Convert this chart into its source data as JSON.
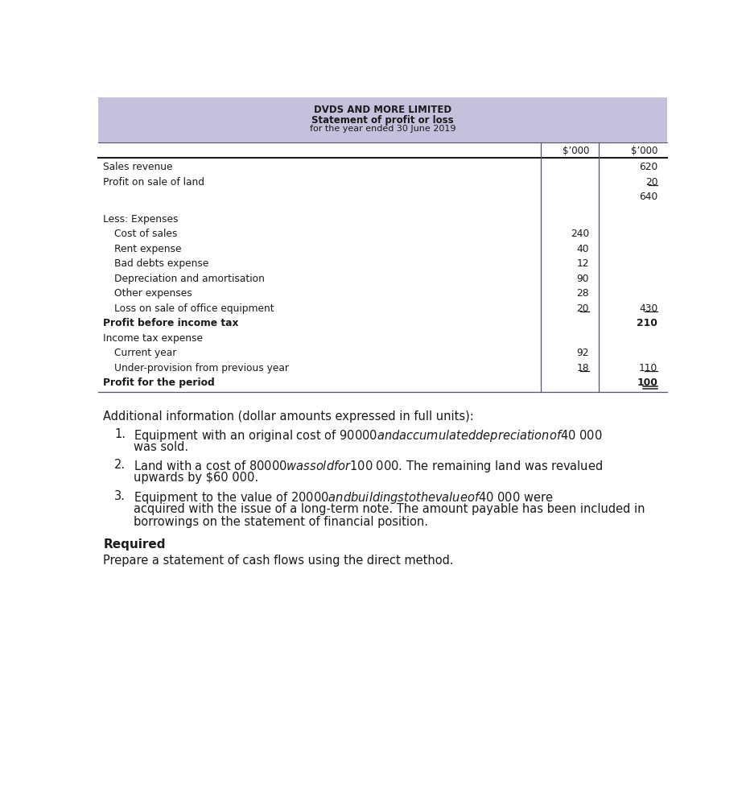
{
  "title_line1": "DVDS AND MORE LIMITED",
  "title_line2": "Statement of profit or loss",
  "title_line3": "for the year ended 30 June 2019",
  "header_bg": "#c5c0dc",
  "col1_header": "$’000",
  "col2_header": "$’000",
  "table_rows": [
    {
      "label": "Sales revenue",
      "indent": 0,
      "col1": "",
      "col2": "620",
      "bold": false,
      "ul1": false,
      "ul2": false,
      "dul2": false,
      "extra_after": 0
    },
    {
      "label": "Profit on sale of land",
      "indent": 0,
      "col1": "",
      "col2": "20",
      "bold": false,
      "ul1": false,
      "ul2": true,
      "dul2": false,
      "extra_after": 0
    },
    {
      "label": "",
      "indent": 0,
      "col1": "",
      "col2": "640",
      "bold": false,
      "ul1": false,
      "ul2": false,
      "dul2": false,
      "extra_after": 12
    },
    {
      "label": "Less: Expenses",
      "indent": 0,
      "col1": "",
      "col2": "",
      "bold": false,
      "ul1": false,
      "ul2": false,
      "dul2": false,
      "extra_after": 0
    },
    {
      "label": "Cost of sales",
      "indent": 1,
      "col1": "240",
      "col2": "",
      "bold": false,
      "ul1": false,
      "ul2": false,
      "dul2": false,
      "extra_after": 0
    },
    {
      "label": "Rent expense",
      "indent": 1,
      "col1": "40",
      "col2": "",
      "bold": false,
      "ul1": false,
      "ul2": false,
      "dul2": false,
      "extra_after": 0
    },
    {
      "label": "Bad debts expense",
      "indent": 1,
      "col1": "12",
      "col2": "",
      "bold": false,
      "ul1": false,
      "ul2": false,
      "dul2": false,
      "extra_after": 0
    },
    {
      "label": "Depreciation and amortisation",
      "indent": 1,
      "col1": "90",
      "col2": "",
      "bold": false,
      "ul1": false,
      "ul2": false,
      "dul2": false,
      "extra_after": 0
    },
    {
      "label": "Other expenses",
      "indent": 1,
      "col1": "28",
      "col2": "",
      "bold": false,
      "ul1": false,
      "ul2": false,
      "dul2": false,
      "extra_after": 0
    },
    {
      "label": "Loss on sale of office equipment",
      "indent": 1,
      "col1": "20",
      "col2": "430",
      "bold": false,
      "ul1": true,
      "ul2": true,
      "dul2": false,
      "extra_after": 0
    },
    {
      "label": "Profit before income tax",
      "indent": 0,
      "col1": "",
      "col2": "210",
      "bold": true,
      "ul1": false,
      "ul2": false,
      "dul2": false,
      "extra_after": 0
    },
    {
      "label": "Income tax expense",
      "indent": 0,
      "col1": "",
      "col2": "",
      "bold": false,
      "ul1": false,
      "ul2": false,
      "dul2": false,
      "extra_after": 0
    },
    {
      "label": "Current year",
      "indent": 1,
      "col1": "92",
      "col2": "",
      "bold": false,
      "ul1": false,
      "ul2": false,
      "dul2": false,
      "extra_after": 0
    },
    {
      "label": "Under-provision from previous year",
      "indent": 1,
      "col1": "18",
      "col2": "110",
      "bold": false,
      "ul1": true,
      "ul2": true,
      "dul2": false,
      "extra_after": 0
    },
    {
      "label": "Profit for the period",
      "indent": 0,
      "col1": "",
      "col2": "100",
      "bold": true,
      "ul1": false,
      "ul2": false,
      "dul2": true,
      "extra_after": 0
    }
  ],
  "additional_info_title": "Additional information (dollar amounts expressed in full units):",
  "additional_items": [
    [
      "Equipment with an original cost of $90 000 and accumulated depreciation of $40 000",
      "was sold."
    ],
    [
      "Land with a cost of $80 000 was sold for $100 000. The remaining land was revalued",
      "upwards by $60 000."
    ],
    [
      "Equipment to the value of $20 000 and buildings to the value of $40 000 were",
      "acquired with the issue of a long-term note. The amount payable has been included in",
      "borrowings on the statement of financial position."
    ]
  ],
  "required_label": "Required",
  "required_text": "Prepare a statement of cash flows using the direct method.",
  "bg_color": "#ffffff",
  "text_color": "#1a1a1a",
  "line_color": "#555566",
  "header_text_color": "#1a1a1a"
}
